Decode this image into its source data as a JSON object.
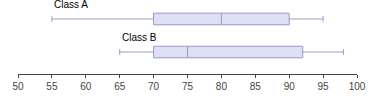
{
  "chart_data": {
    "type": "box",
    "orientation": "horizontal",
    "series": [
      {
        "name": "Class A",
        "whislo": 55,
        "q1": 70,
        "med": 80,
        "q3": 90,
        "whishi": 95,
        "color": "#dde0f5"
      },
      {
        "name": "Class B",
        "whislo": 65,
        "q1": 70,
        "med": 75,
        "q3": 92,
        "whishi": 98,
        "color": "#dde0f5"
      }
    ],
    "color": "#9999cc",
    "xlim": [
      50,
      100
    ],
    "xticks": [
      50,
      55,
      60,
      65,
      70,
      75,
      80,
      85,
      90,
      95,
      100
    ],
    "grid": false
  }
}
